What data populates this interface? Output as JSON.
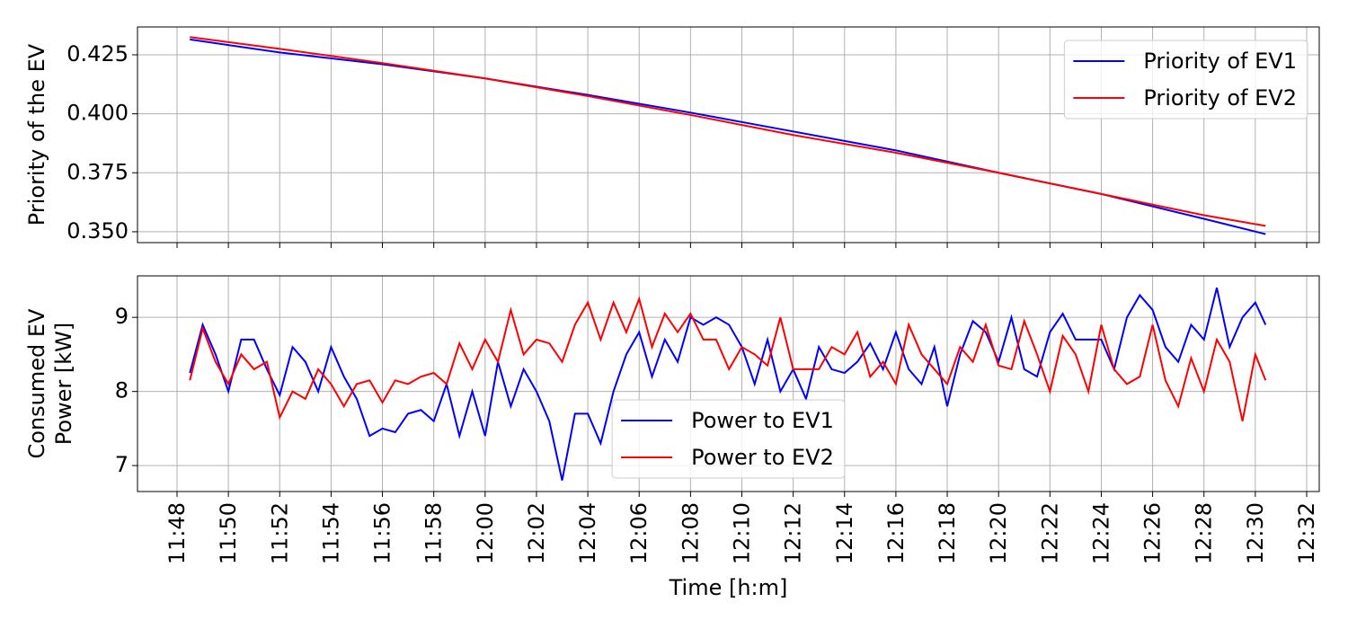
{
  "chart_data": [
    {
      "type": "line",
      "ylabel": [
        "Priority of the EV"
      ],
      "x": [
        708.5,
        712,
        716,
        720,
        724,
        728,
        732,
        736,
        740,
        744,
        748,
        750.4
      ],
      "series": [
        {
          "name": "Priority of EV1",
          "color": "#0000ff",
          "values": [
            0.4315,
            0.426,
            0.421,
            0.415,
            0.408,
            0.4005,
            0.3925,
            0.3845,
            0.375,
            0.366,
            0.3555,
            0.349
          ]
        },
        {
          "name": "Priority of EV2",
          "color": "#ff0000",
          "values": [
            0.4325,
            0.4275,
            0.4215,
            0.415,
            0.4075,
            0.3995,
            0.391,
            0.3835,
            0.375,
            0.366,
            0.357,
            0.3525
          ]
        }
      ],
      "ylim": [
        0.3454,
        0.4368
      ],
      "yticks": [
        {
          "value": 0.35,
          "label": "0.350"
        },
        0.375,
        {
          "value": 0.4,
          "label": "0.400"
        },
        0.425
      ],
      "grid": true,
      "legend": "upper right"
    },
    {
      "type": "line",
      "xlabel": "Time [h:m]",
      "ylabel": [
        "Consumed EV",
        "Power [kW]"
      ],
      "x": [
        708.5,
        709,
        709.5,
        710,
        710.5,
        711,
        711.5,
        712,
        712.5,
        713,
        713.5,
        714,
        714.5,
        715,
        715.5,
        716,
        716.5,
        717,
        717.5,
        718,
        718.5,
        719,
        719.5,
        720,
        720.5,
        721,
        721.5,
        722,
        722.5,
        723,
        723.5,
        724,
        724.5,
        725,
        725.5,
        726,
        726.5,
        727,
        727.5,
        728,
        728.5,
        729,
        729.5,
        730,
        730.5,
        731,
        731.5,
        732,
        732.5,
        733,
        733.5,
        734,
        734.5,
        735,
        735.5,
        736,
        736.5,
        737,
        737.5,
        738,
        738.5,
        739,
        739.5,
        740,
        740.5,
        741,
        741.5,
        742,
        742.5,
        743,
        743.5,
        744,
        744.5,
        745,
        745.5,
        746,
        746.5,
        747,
        747.5,
        748,
        748.5,
        749,
        749.5,
        750,
        750.4
      ],
      "series": [
        {
          "name": "Power to EV1",
          "color": "#0000ff",
          "values": [
            8.25,
            8.9,
            8.5,
            8.0,
            8.7,
            8.7,
            8.3,
            7.95,
            8.6,
            8.4,
            8.0,
            8.6,
            8.2,
            7.9,
            7.4,
            7.5,
            7.45,
            7.7,
            7.75,
            7.6,
            8.1,
            7.4,
            8.0,
            7.4,
            8.4,
            7.8,
            8.3,
            8.0,
            7.6,
            6.8,
            7.7,
            7.7,
            7.3,
            8.0,
            8.5,
            8.8,
            8.2,
            8.7,
            8.4,
            9.0,
            8.9,
            9.0,
            8.9,
            8.6,
            8.1,
            8.7,
            8.0,
            8.3,
            7.9,
            8.6,
            8.3,
            8.25,
            8.4,
            8.65,
            8.3,
            8.8,
            8.3,
            8.1,
            8.6,
            7.8,
            8.5,
            8.95,
            8.8,
            8.4,
            9.0,
            8.3,
            8.2,
            8.8,
            9.05,
            8.7,
            8.7,
            8.7,
            8.3,
            9.0,
            9.3,
            9.1,
            8.6,
            8.4,
            8.9,
            8.7,
            9.4,
            8.6,
            9.0,
            9.2,
            8.9
          ]
        },
        {
          "name": "Power to EV2",
          "color": "#ff0000",
          "values": [
            8.15,
            8.85,
            8.4,
            8.1,
            8.5,
            8.3,
            8.4,
            7.65,
            8.0,
            7.9,
            8.3,
            8.1,
            7.8,
            8.1,
            8.15,
            7.85,
            8.15,
            8.1,
            8.2,
            8.25,
            8.1,
            8.65,
            8.3,
            8.7,
            8.4,
            9.1,
            8.5,
            8.7,
            8.65,
            8.4,
            8.9,
            9.2,
            8.7,
            9.2,
            8.8,
            9.25,
            8.6,
            9.05,
            8.8,
            9.05,
            8.7,
            8.7,
            8.3,
            8.6,
            8.5,
            8.35,
            9.0,
            8.3,
            8.3,
            8.3,
            8.6,
            8.5,
            8.8,
            8.2,
            8.4,
            8.1,
            8.9,
            8.5,
            8.3,
            8.1,
            8.6,
            8.4,
            8.9,
            8.35,
            8.3,
            8.95,
            8.5,
            8.0,
            8.75,
            8.5,
            8.0,
            8.9,
            8.3,
            8.1,
            8.2,
            8.9,
            8.15,
            7.8,
            8.45,
            8.0,
            8.7,
            8.4,
            7.6,
            8.5,
            8.15
          ]
        }
      ],
      "xlim": [
        706.46,
        752.49
      ],
      "xticks": [
        {
          "value": 708,
          "label": "11:48"
        },
        {
          "value": 710,
          "label": "11:50"
        },
        {
          "value": 712,
          "label": "11:52"
        },
        {
          "value": 714,
          "label": "11:54"
        },
        {
          "value": 716,
          "label": "11:56"
        },
        {
          "value": 718,
          "label": "11:58"
        },
        {
          "value": 720,
          "label": "12:00"
        },
        {
          "value": 722,
          "label": "12:02"
        },
        {
          "value": 724,
          "label": "12:04"
        },
        {
          "value": 726,
          "label": "12:06"
        },
        {
          "value": 728,
          "label": "12:08"
        },
        {
          "value": 730,
          "label": "12:10"
        },
        {
          "value": 732,
          "label": "12:12"
        },
        {
          "value": 734,
          "label": "12:14"
        },
        {
          "value": 736,
          "label": "12:16"
        },
        {
          "value": 738,
          "label": "12:18"
        },
        {
          "value": 740,
          "label": "12:20"
        },
        {
          "value": 742,
          "label": "12:22"
        },
        {
          "value": 744,
          "label": "12:24"
        },
        {
          "value": 746,
          "label": "12:26"
        },
        {
          "value": 748,
          "label": "12:28"
        },
        {
          "value": 750,
          "label": "12:30"
        },
        {
          "value": 752,
          "label": "12:32"
        }
      ],
      "ylim": [
        6.65,
        9.56
      ],
      "yticks": [
        7,
        8,
        9
      ],
      "grid": true,
      "legend": "lower center"
    }
  ]
}
